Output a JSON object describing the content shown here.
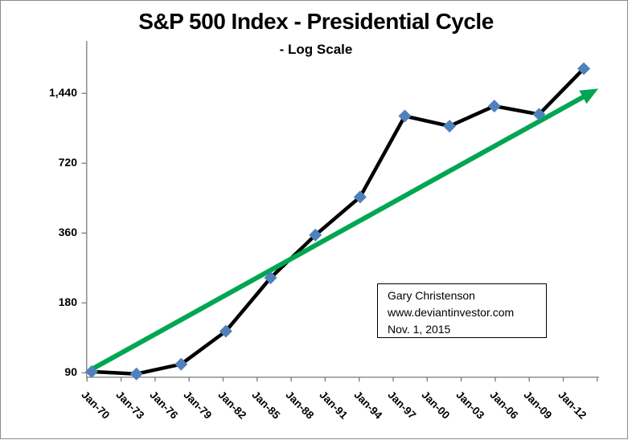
{
  "chart": {
    "title": "S&P 500 Index - Presidential Cycle",
    "subtitle": "- Log Scale"
  },
  "chart_data": {
    "type": "line",
    "title": "S&P 500 Index - Presidential Cycle",
    "subtitle": "- Log Scale",
    "grid": "off",
    "legend": "none",
    "y_axis": {
      "scale": "log",
      "tick_labels": [
        "1,440",
        "720",
        "360",
        "180",
        "90"
      ],
      "tick_values": [
        1440,
        720,
        360,
        180,
        90
      ],
      "ylim": [
        86,
        2400
      ]
    },
    "x_axis": {
      "tick_labels": [
        "Jan-70",
        "Jan-73",
        "Jan-76",
        "Jan-79",
        "Jan-82",
        "Jan-85",
        "Jan-88",
        "Jan-91",
        "Jan-94",
        "Jan-97",
        "Jan-00",
        "Jan-03",
        "Jan-06",
        "Jan-09",
        "Jan-12"
      ],
      "tick_years": [
        1970,
        1973,
        1976,
        1979,
        1982,
        1985,
        1988,
        1991,
        1994,
        1997,
        2000,
        2003,
        2006,
        2009,
        2012
      ]
    },
    "series": [
      {
        "name": "S&P 500 Index",
        "type": "line",
        "line_color": "#000000",
        "marker": "diamond",
        "marker_color": "#4f81bd",
        "x_years": [
          1970,
          1974,
          1978,
          1982,
          1986,
          1990,
          1994,
          1998,
          2002,
          2006,
          2010,
          2014
        ],
        "values": [
          91,
          89,
          98,
          136,
          231,
          353,
          515,
          1150,
          1040,
          1270,
          1170,
          1840
        ]
      }
    ],
    "trend_arrow": {
      "color": "#00a651",
      "x_years": [
        1970.15,
        2015.3
      ],
      "values": [
        94,
        1510
      ]
    }
  },
  "annotation_box": {
    "lines": [
      "Gary Christenson",
      "www.deviantinvestor.com",
      "Nov. 1, 2015"
    ]
  }
}
